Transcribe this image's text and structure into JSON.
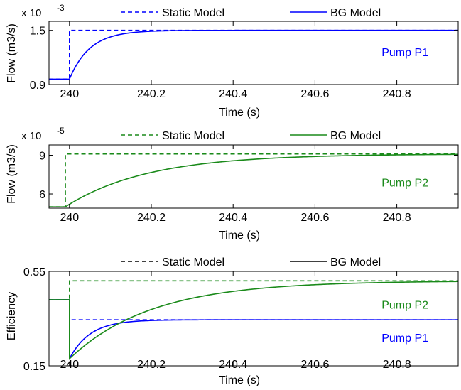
{
  "chart_data": [
    {
      "type": "line",
      "exponent_base": "x 10",
      "exponent_power": "-3",
      "xlabel": "Time (s)",
      "ylabel": "Flow (m3/s)",
      "xlim": [
        239.95,
        240.95
      ],
      "ylim": [
        0.9,
        1.6
      ],
      "xticks": [
        240,
        240.2,
        240.4,
        240.6,
        240.8
      ],
      "xtick_labels": [
        "240",
        "240.2",
        "240.4",
        "240.6",
        "240.8"
      ],
      "yticks": [
        0.9,
        1.5
      ],
      "ytick_labels": [
        "0.9",
        "1.5"
      ],
      "legend": [
        {
          "label": "Static Model",
          "color": "#0000ff",
          "dash": true
        },
        {
          "label": "BG Model",
          "color": "#0000ff",
          "dash": false
        }
      ],
      "annotations": [
        {
          "text": "Pump P1",
          "color": "#0000ff",
          "x": 240.82,
          "y": 1.26
        }
      ],
      "series": [
        {
          "name": "Static Model",
          "color": "#0000ff",
          "dash": true,
          "kind": "step",
          "x0": 239.95,
          "t0": 240.0,
          "y_before": 0.96,
          "y_after": 1.5,
          "x1": 240.95
        },
        {
          "name": "BG Model",
          "color": "#0000ff",
          "dash": false,
          "kind": "exp",
          "x0": 239.95,
          "t0": 240.0,
          "y_before": 0.96,
          "y_after": 1.5,
          "tau": 0.05,
          "x1": 240.95
        }
      ]
    },
    {
      "type": "line",
      "exponent_base": "x 10",
      "exponent_power": "-5",
      "xlabel": "Time (s)",
      "ylabel": "Flow (m3/s)",
      "xlim": [
        239.95,
        240.95
      ],
      "ylim": [
        4.9,
        9.8
      ],
      "xticks": [
        240,
        240.2,
        240.4,
        240.6,
        240.8
      ],
      "xtick_labels": [
        "240",
        "240.2",
        "240.4",
        "240.6",
        "240.8"
      ],
      "yticks": [
        6,
        9
      ],
      "ytick_labels": [
        "6",
        "9"
      ],
      "legend": [
        {
          "label": "Static Model",
          "color": "#1a8a1a",
          "dash": true
        },
        {
          "label": "BG Model",
          "color": "#1a8a1a",
          "dash": false
        }
      ],
      "annotations": [
        {
          "text": "Pump P2",
          "color": "#1a8a1a",
          "x": 240.82,
          "y": 6.9
        }
      ],
      "series": [
        {
          "name": "Static Model",
          "color": "#1a8a1a",
          "dash": true,
          "kind": "step",
          "x0": 239.95,
          "t0": 239.99,
          "y_before": 5.0,
          "y_after": 9.1,
          "x1": 240.95
        },
        {
          "name": "BG Model",
          "color": "#1a8a1a",
          "dash": false,
          "kind": "exp",
          "x0": 239.95,
          "t0": 239.99,
          "y_before": 5.0,
          "y_after": 9.1,
          "tau": 0.2,
          "x1": 240.95
        }
      ]
    },
    {
      "type": "line",
      "xlabel": "Time (s)",
      "ylabel": "Efficiency",
      "xlim": [
        239.95,
        240.95
      ],
      "ylim": [
        0.15,
        0.55
      ],
      "xticks": [
        240,
        240.2,
        240.4,
        240.6,
        240.8
      ],
      "xtick_labels": [
        "240",
        "240.2",
        "240.4",
        "240.6",
        "240.8"
      ],
      "yticks": [
        0.15,
        0.55
      ],
      "ytick_labels": [
        "0.15",
        "0.55"
      ],
      "legend": [
        {
          "label": "Static Model",
          "color": "#000000",
          "dash": true
        },
        {
          "label": "BG Model",
          "color": "#000000",
          "dash": false
        }
      ],
      "annotations": [
        {
          "text": "Pump P2",
          "color": "#1a8a1a",
          "x": 240.82,
          "y": 0.41
        },
        {
          "text": "Pump P1",
          "color": "#0000ff",
          "x": 240.82,
          "y": 0.27
        }
      ],
      "series": [
        {
          "name": "Static Model",
          "color": "#0000ff",
          "dash": true,
          "kind": "step",
          "x0": 239.95,
          "t0": 240.0,
          "y_before": 0.43,
          "y_after": 0.345,
          "x1": 240.95
        },
        {
          "name": "Static Model",
          "color": "#1a8a1a",
          "dash": true,
          "kind": "step",
          "x0": 239.95,
          "t0": 240.0,
          "y_before": 0.43,
          "y_after": 0.51,
          "x1": 240.95
        },
        {
          "name": "BG Model",
          "color": "#0000ff",
          "dash": false,
          "kind": "dipexp",
          "x0": 239.95,
          "t0": 240.0,
          "y_before": 0.43,
          "y_min": 0.18,
          "y_after": 0.345,
          "tau": 0.05,
          "x1": 240.95
        },
        {
          "name": "BG Model",
          "color": "#1a8a1a",
          "dash": false,
          "kind": "dipexp",
          "x0": 239.95,
          "t0": 240.0,
          "y_before": 0.43,
          "y_min": 0.18,
          "y_after": 0.51,
          "tau": 0.2,
          "x1": 240.95
        }
      ]
    }
  ]
}
